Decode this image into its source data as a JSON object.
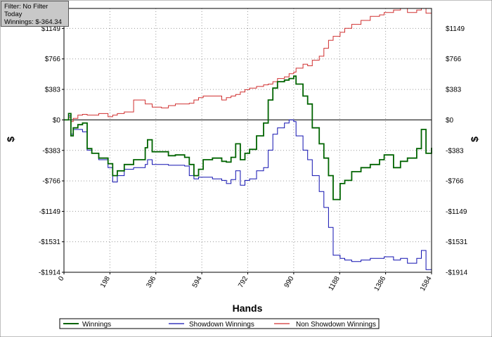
{
  "info_box": {
    "filter": "Filter: No Filter",
    "period": "Today",
    "winnings": "Winnings: $-364.34"
  },
  "chart_data": {
    "type": "line",
    "title": "",
    "xlabel": "Hands",
    "ylabel": "$",
    "xlim": [
      0,
      1584
    ],
    "ylim": [
      -1914,
      1400
    ],
    "x_ticks": [
      0,
      198,
      396,
      594,
      792,
      990,
      1188,
      1386,
      1584
    ],
    "x_tick_labels": [
      "0",
      "198",
      "396",
      "594",
      "792",
      "990",
      "1188",
      "1386",
      "1584"
    ],
    "y_ticks": [
      1149,
      766,
      383,
      0,
      -383,
      -766,
      -1149,
      -1531,
      -1914
    ],
    "y_tick_labels": [
      "$1149",
      "$766",
      "$383",
      "$0",
      "-$383",
      "-$766",
      "-$1149",
      "-$1531",
      "-$1914"
    ],
    "grid": true,
    "legend_position": "bottom",
    "series": [
      {
        "name": "Winnings",
        "color": "#006400",
        "x": [
          0,
          20,
          30,
          40,
          60,
          80,
          100,
          120,
          150,
          190,
          210,
          230,
          260,
          300,
          350,
          360,
          380,
          420,
          450,
          480,
          520,
          540,
          560,
          580,
          600,
          640,
          680,
          700,
          720,
          740,
          760,
          780,
          800,
          830,
          860,
          880,
          900,
          920,
          950,
          970,
          990,
          1000,
          1030,
          1050,
          1070,
          1100,
          1120,
          1140,
          1160,
          1190,
          1210,
          1240,
          1280,
          1320,
          1360,
          1380,
          1420,
          1450,
          1480,
          1520,
          1540,
          1560,
          1584
        ],
        "y": [
          0,
          80,
          -200,
          -100,
          -60,
          -40,
          -360,
          -420,
          -480,
          -550,
          -700,
          -640,
          -560,
          -500,
          -350,
          -250,
          -400,
          -400,
          -450,
          -440,
          -470,
          -560,
          -700,
          -620,
          -500,
          -480,
          -520,
          -530,
          -470,
          -300,
          -500,
          -420,
          -370,
          -200,
          -40,
          250,
          400,
          480,
          500,
          520,
          550,
          450,
          300,
          200,
          -100,
          -300,
          -480,
          -700,
          -1000,
          -800,
          -760,
          -650,
          -600,
          -560,
          -500,
          -440,
          -600,
          -520,
          -480,
          -360,
          -120,
          -420,
          -350
        ]
      },
      {
        "name": "Showdown Winnings",
        "color": "#1010b0",
        "x": [
          0,
          20,
          30,
          40,
          60,
          80,
          100,
          120,
          150,
          190,
          210,
          230,
          260,
          300,
          350,
          360,
          380,
          420,
          450,
          480,
          520,
          540,
          560,
          580,
          600,
          640,
          680,
          700,
          720,
          740,
          760,
          780,
          800,
          830,
          860,
          880,
          900,
          920,
          950,
          970,
          990,
          1000,
          1030,
          1050,
          1070,
          1100,
          1120,
          1140,
          1160,
          1190,
          1210,
          1240,
          1280,
          1320,
          1360,
          1380,
          1420,
          1450,
          1480,
          1520,
          1540,
          1560,
          1584
        ],
        "y": [
          0,
          50,
          -180,
          -120,
          -120,
          -150,
          -380,
          -420,
          -500,
          -600,
          -780,
          -700,
          -620,
          -600,
          -560,
          -500,
          -560,
          -560,
          -570,
          -570,
          -580,
          -700,
          -740,
          -720,
          -720,
          -740,
          -760,
          -800,
          -750,
          -640,
          -820,
          -760,
          -740,
          -640,
          -600,
          -380,
          -180,
          -100,
          -40,
          0,
          -20,
          -200,
          -380,
          -500,
          -700,
          -900,
          -1100,
          -1350,
          -1700,
          -1740,
          -1760,
          -1780,
          -1760,
          -1740,
          -1740,
          -1720,
          -1760,
          -1740,
          -1800,
          -1740,
          -1640,
          -1880,
          -1900
        ]
      },
      {
        "name": "Non Showdown Winnings",
        "color": "#d03030",
        "x": [
          0,
          20,
          30,
          40,
          60,
          80,
          100,
          120,
          150,
          190,
          210,
          230,
          260,
          300,
          350,
          360,
          380,
          420,
          450,
          480,
          520,
          540,
          560,
          580,
          600,
          640,
          680,
          700,
          720,
          740,
          760,
          780,
          800,
          830,
          860,
          880,
          900,
          920,
          950,
          970,
          990,
          1000,
          1030,
          1050,
          1070,
          1100,
          1120,
          1140,
          1160,
          1190,
          1210,
          1240,
          1280,
          1320,
          1360,
          1380,
          1420,
          1450,
          1480,
          1520,
          1540,
          1560,
          1584
        ],
        "y": [
          0,
          30,
          -20,
          20,
          60,
          70,
          60,
          60,
          80,
          40,
          60,
          80,
          100,
          250,
          200,
          200,
          160,
          150,
          180,
          200,
          200,
          210,
          250,
          280,
          300,
          300,
          250,
          280,
          300,
          320,
          350,
          380,
          400,
          420,
          440,
          450,
          480,
          520,
          540,
          580,
          600,
          650,
          700,
          680,
          750,
          800,
          900,
          1000,
          1050,
          1100,
          1150,
          1200,
          1250,
          1300,
          1320,
          1350,
          1380,
          1400,
          1350,
          1380,
          1400,
          1340,
          1380
        ]
      }
    ]
  }
}
